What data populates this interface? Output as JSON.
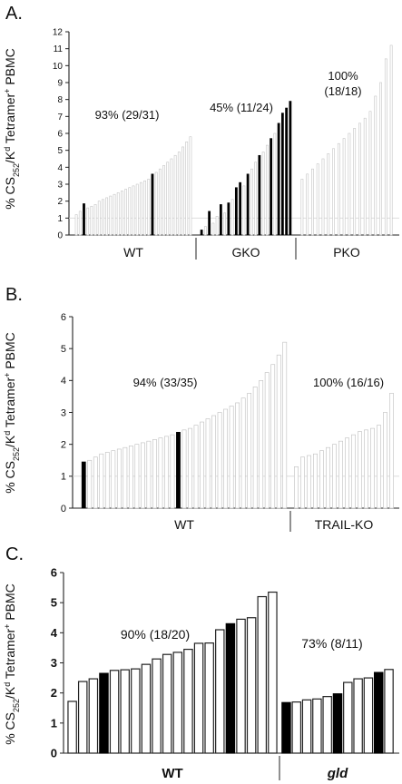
{
  "chart_data": [
    {
      "type": "bar",
      "panel_label": "A.",
      "ylabel_parts": [
        "% CS",
        "252",
        "/K",
        "d",
        " Tetramer",
        "+",
        " PBMC"
      ],
      "ylim": [
        0,
        12
      ],
      "y_ticks": [
        "0",
        "1",
        "2",
        "3",
        "4",
        "5",
        "6",
        "7",
        "8",
        "9",
        "10",
        "11",
        "12"
      ],
      "reference_line": 1,
      "groups": [
        {
          "name": "WT",
          "annotation": "93% (29/31)",
          "values": [
            1.2,
            1.4,
            1.85,
            1.6,
            1.7,
            1.8,
            2.0,
            2.1,
            2.2,
            2.3,
            2.4,
            2.5,
            2.6,
            2.7,
            2.8,
            2.9,
            3.0,
            3.1,
            3.2,
            3.3,
            3.6,
            3.7,
            3.9,
            4.1,
            4.3,
            4.5,
            4.7,
            4.9,
            5.2,
            5.5,
            5.8
          ],
          "filled": [
            false,
            false,
            true,
            false,
            false,
            false,
            false,
            false,
            false,
            false,
            false,
            false,
            false,
            false,
            false,
            false,
            false,
            false,
            false,
            false,
            true,
            false,
            false,
            false,
            false,
            false,
            false,
            false,
            false,
            false,
            false
          ]
        },
        {
          "name": "GKO",
          "annotation": "45% (11/24)",
          "values": [
            0.3,
            0.5,
            1.4,
            0.7,
            1.1,
            1.8,
            1.3,
            1.9,
            2.1,
            2.8,
            3.1,
            2.9,
            3.6,
            3.9,
            4.3,
            4.7,
            4.9,
            5.3,
            5.7,
            6.0,
            6.6,
            7.2,
            7.5,
            7.9
          ],
          "filled": [
            true,
            false,
            true,
            false,
            false,
            true,
            false,
            true,
            false,
            true,
            true,
            false,
            true,
            false,
            false,
            true,
            false,
            false,
            true,
            false,
            true,
            true,
            true,
            true
          ]
        },
        {
          "name": "PKO",
          "annotation": "100% (18/18)",
          "values": [
            3.3,
            3.6,
            3.9,
            4.2,
            4.5,
            4.8,
            5.1,
            5.4,
            5.7,
            6.0,
            6.3,
            6.6,
            6.9,
            7.3,
            8.2,
            9.0,
            10.4,
            11.2
          ],
          "filled": [
            false,
            false,
            false,
            false,
            false,
            false,
            false,
            false,
            false,
            false,
            false,
            false,
            false,
            false,
            false,
            false,
            false,
            false
          ]
        }
      ]
    },
    {
      "type": "bar",
      "panel_label": "B.",
      "ylabel_parts": [
        "% CS",
        "252",
        "/K",
        "d",
        " Tetramer",
        "+",
        " PBMC"
      ],
      "ylim": [
        0,
        6
      ],
      "y_ticks": [
        "0",
        "1",
        "2",
        "3",
        "4",
        "5",
        "6"
      ],
      "reference_line": 1,
      "groups": [
        {
          "name": "WT",
          "annotation": "94% (33/35)",
          "values": [
            1.45,
            1.5,
            1.6,
            1.7,
            1.75,
            1.8,
            1.85,
            1.9,
            1.95,
            2.0,
            2.05,
            2.1,
            2.15,
            2.2,
            2.25,
            2.3,
            2.38,
            2.45,
            2.5,
            2.6,
            2.7,
            2.8,
            2.9,
            3.0,
            3.1,
            3.2,
            3.3,
            3.45,
            3.6,
            3.8,
            4.0,
            4.25,
            4.5,
            4.8,
            5.2
          ],
          "filled": [
            true,
            false,
            false,
            false,
            false,
            false,
            false,
            false,
            false,
            false,
            false,
            false,
            false,
            false,
            false,
            false,
            true,
            false,
            false,
            false,
            false,
            false,
            false,
            false,
            false,
            false,
            false,
            false,
            false,
            false,
            false,
            false,
            false,
            false,
            false
          ]
        },
        {
          "name": "TRAIL-KO",
          "annotation": "100% (16/16)",
          "values": [
            1.3,
            1.6,
            1.65,
            1.7,
            1.8,
            1.9,
            2.0,
            2.1,
            2.2,
            2.3,
            2.4,
            2.45,
            2.5,
            2.6,
            3.0,
            3.6
          ],
          "filled": [
            false,
            false,
            false,
            false,
            false,
            false,
            false,
            false,
            false,
            false,
            false,
            false,
            false,
            false,
            false,
            false
          ]
        }
      ]
    },
    {
      "type": "bar",
      "panel_label": "C.",
      "ylabel_parts": [
        "% CS",
        "252",
        "/K",
        "d",
        " Tetramer",
        "+",
        " PBMC"
      ],
      "ylim": [
        0,
        6
      ],
      "y_ticks": [
        "0",
        "1",
        "2",
        "3",
        "4",
        "5",
        "6"
      ],
      "reference_line": null,
      "groups": [
        {
          "name": "WT",
          "annotation": "90% (18/20)",
          "values": [
            1.72,
            2.38,
            2.47,
            2.65,
            2.75,
            2.77,
            2.8,
            2.95,
            3.13,
            3.28,
            3.35,
            3.45,
            3.65,
            3.66,
            4.1,
            4.3,
            4.45,
            4.5,
            5.2,
            5.35
          ],
          "filled": [
            false,
            false,
            false,
            true,
            false,
            false,
            false,
            false,
            false,
            false,
            false,
            false,
            false,
            false,
            false,
            true,
            false,
            false,
            false,
            false
          ]
        },
        {
          "name": "gld",
          "annotation": "73% (8/11)",
          "values": [
            1.68,
            1.7,
            1.77,
            1.8,
            1.88,
            1.97,
            2.35,
            2.47,
            2.5,
            2.68,
            2.78
          ],
          "filled": [
            true,
            false,
            false,
            false,
            false,
            true,
            false,
            false,
            false,
            true,
            false
          ]
        }
      ]
    }
  ]
}
